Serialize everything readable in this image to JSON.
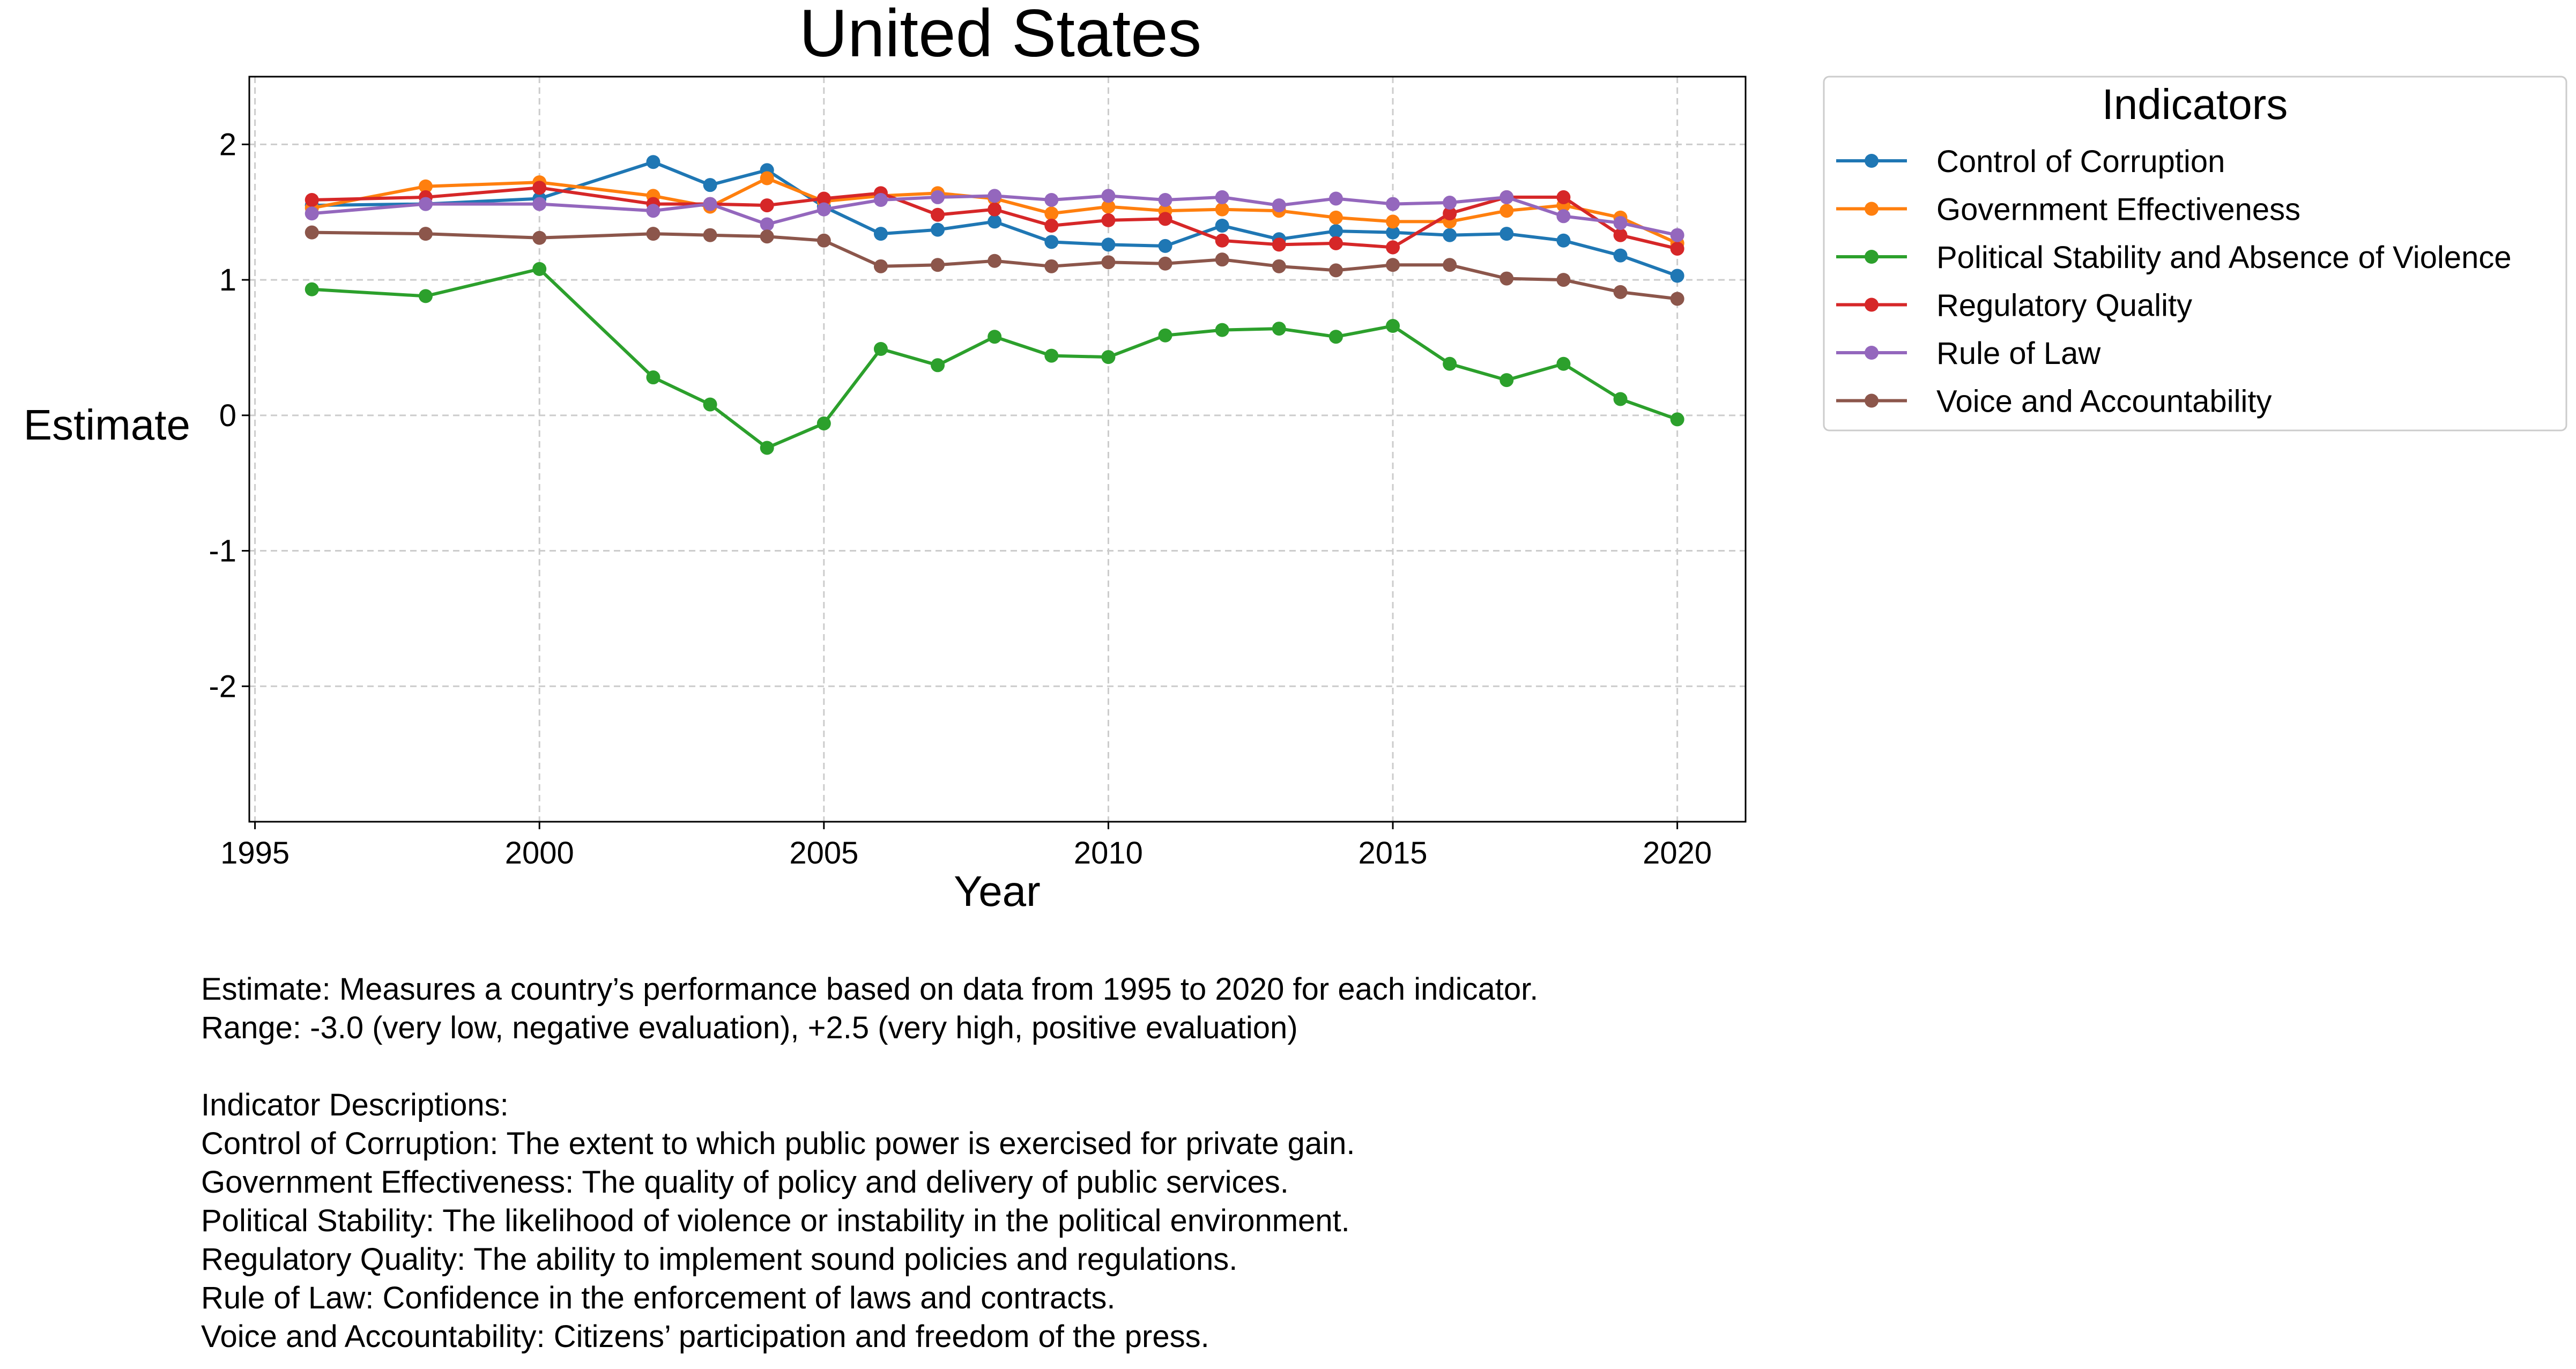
{
  "chart_data": {
    "type": "line",
    "title": "United States",
    "xlabel": "Year",
    "ylabel": "Estimate",
    "xlim": [
      1994.9,
      2021.2
    ],
    "ylim": [
      -3.0,
      2.5
    ],
    "xticks": [
      1995,
      2000,
      2005,
      2010,
      2015,
      2020
    ],
    "yticks": [
      -2,
      -1,
      0,
      1,
      2
    ],
    "grid": true,
    "legend": {
      "title": "Indicators",
      "placement": "outside-right-top"
    },
    "x": [
      1996,
      1998,
      2000,
      2002,
      2003,
      2004,
      2005,
      2006,
      2007,
      2008,
      2009,
      2010,
      2011,
      2012,
      2013,
      2014,
      2015,
      2016,
      2017,
      2018,
      2019,
      2020
    ],
    "series": [
      {
        "name": "Control of Corruption",
        "color": "#1f77b4",
        "values": [
          1.55,
          1.56,
          1.6,
          1.87,
          1.7,
          1.81,
          1.54,
          1.34,
          1.37,
          1.43,
          1.28,
          1.26,
          1.25,
          1.4,
          1.3,
          1.36,
          1.35,
          1.33,
          1.34,
          1.29,
          1.18,
          1.03
        ]
      },
      {
        "name": "Government Effectiveness",
        "color": "#ff7f0e",
        "values": [
          1.53,
          1.69,
          1.72,
          1.62,
          1.54,
          1.75,
          1.58,
          1.62,
          1.64,
          1.6,
          1.49,
          1.54,
          1.51,
          1.52,
          1.51,
          1.46,
          1.43,
          1.43,
          1.51,
          1.55,
          1.46,
          1.27
        ]
      },
      {
        "name": "Political Stability and Absence of Violence",
        "color": "#2ca02c",
        "values": [
          0.93,
          0.88,
          1.08,
          0.28,
          0.08,
          -0.24,
          -0.06,
          0.49,
          0.37,
          0.58,
          0.44,
          0.43,
          0.59,
          0.63,
          0.64,
          0.58,
          0.66,
          0.38,
          0.26,
          0.38,
          0.12,
          -0.03
        ]
      },
      {
        "name": "Regulatory Quality",
        "color": "#d62728",
        "values": [
          1.59,
          1.61,
          1.68,
          1.56,
          1.56,
          1.55,
          1.6,
          1.64,
          1.48,
          1.52,
          1.4,
          1.44,
          1.45,
          1.29,
          1.26,
          1.27,
          1.24,
          1.49,
          1.61,
          1.61,
          1.33,
          1.23
        ]
      },
      {
        "name": "Rule of Law",
        "color": "#9467bd",
        "values": [
          1.49,
          1.56,
          1.56,
          1.51,
          1.56,
          1.41,
          1.52,
          1.59,
          1.61,
          1.62,
          1.59,
          1.62,
          1.59,
          1.61,
          1.55,
          1.6,
          1.56,
          1.57,
          1.61,
          1.47,
          1.42,
          1.33
        ]
      },
      {
        "name": "Voice and Accountability",
        "color": "#8c564b",
        "values": [
          1.35,
          1.34,
          1.31,
          1.34,
          1.33,
          1.32,
          1.29,
          1.1,
          1.11,
          1.14,
          1.1,
          1.13,
          1.12,
          1.15,
          1.1,
          1.07,
          1.11,
          1.11,
          1.01,
          1.0,
          0.91,
          0.86
        ]
      }
    ]
  },
  "notes": {
    "estimate": "Estimate: Measures a country’s performance based on data from 1995 to 2020 for each indicator.",
    "range": "Range: -3.0 (very low, negative evaluation), +2.5 (very high, positive evaluation)",
    "descriptions_title": "Indicator Descriptions:",
    "descriptions": [
      "Control of Corruption: The extent to which public power is exercised for private gain.",
      "Government Effectiveness: The quality of policy and delivery of public services.",
      "Political Stability: The likelihood of violence or instability in the political environment.",
      "Regulatory Quality: The ability to implement sound policies and regulations.",
      "Rule of Law: Confidence in the enforcement of laws and contracts.",
      "Voice and Accountability: Citizens’ participation and freedom of the press."
    ]
  }
}
